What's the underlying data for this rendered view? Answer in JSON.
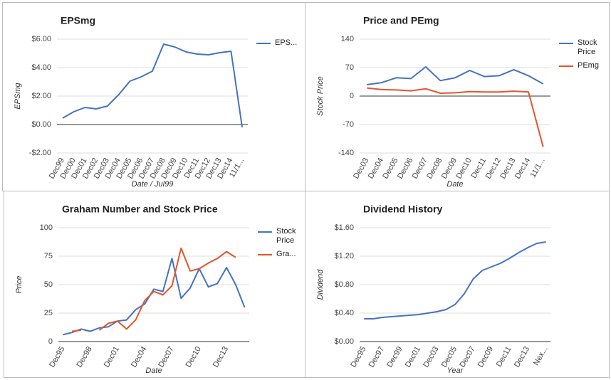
{
  "chart_data": [
    {
      "type": "line",
      "title": "EPSmg",
      "x_label": "Date / Jul99",
      "y_label": "EPSmg",
      "categories": [
        "Dec99",
        "Dec00",
        "Dec01",
        "Dec02",
        "Dec03",
        "Dec04",
        "Dec05",
        "Dec06",
        "Dec07",
        "Dec08",
        "Dec09",
        "Dec10",
        "Dec11",
        "Dec12",
        "Dec13",
        "Dec14",
        "11/1..."
      ],
      "series": [
        {
          "name": "EPS...",
          "color": "#4472c4",
          "values": [
            0.45,
            0.9,
            1.2,
            1.1,
            1.3,
            2.1,
            3.05,
            3.35,
            3.75,
            5.65,
            5.45,
            5.1,
            4.95,
            4.9,
            5.05,
            5.15,
            -0.2
          ]
        }
      ],
      "ylim": [
        -2,
        6
      ],
      "yticks": [
        {
          "value": -2,
          "label": "-$2.00"
        },
        {
          "value": 0,
          "label": "$0.00"
        },
        {
          "value": 2,
          "label": "$2.00"
        },
        {
          "value": 4,
          "label": "$4.00"
        },
        {
          "value": 6,
          "label": "$6.00"
        }
      ],
      "grid": true,
      "legend": "right"
    },
    {
      "type": "line",
      "title": "Price and PEmg",
      "x_label": "Date",
      "y_label": "Stock Price",
      "categories": [
        "Dec03",
        "Dec04",
        "Dec05",
        "Dec06",
        "Dec07",
        "Dec08",
        "Dec09",
        "Dec10",
        "Dec11",
        "Dec12",
        "Dec13",
        "Dec14",
        "11/1..."
      ],
      "series": [
        {
          "name": "Stock Price",
          "color": "#4472c4",
          "values": [
            28,
            33,
            45,
            43,
            72,
            38,
            45,
            63,
            48,
            50,
            65,
            50,
            30
          ]
        },
        {
          "name": "PEmg",
          "color": "#e2552b",
          "values": [
            20,
            16,
            15,
            13,
            18,
            7,
            8,
            11,
            10,
            10,
            12,
            10,
            -125
          ]
        }
      ],
      "ylim": [
        -140,
        140
      ],
      "yticks": [
        -140,
        -70,
        0,
        70,
        140
      ],
      "grid": true,
      "legend": "right"
    },
    {
      "type": "line",
      "title": "Graham Number and Stock Price",
      "x_label": "Date",
      "y_label": "Price",
      "categories": [
        "Dec95",
        null,
        null,
        "Dec98",
        null,
        null,
        "Dec01",
        null,
        null,
        "Dec04",
        null,
        null,
        "Dec07",
        null,
        null,
        "Dec10",
        null,
        null,
        "Dec13",
        null,
        null
      ],
      "series": [
        {
          "name": "Stock Price",
          "color": "#4472c4",
          "values": [
            6,
            8,
            11,
            9,
            12,
            13,
            18,
            19,
            28,
            33,
            46,
            44,
            73,
            38,
            47,
            64,
            48,
            51,
            65,
            50,
            30
          ]
        },
        {
          "name": "Gra...",
          "color": "#e2552b",
          "values": [
            null,
            9,
            10,
            null,
            10,
            16,
            18,
            11,
            19,
            36,
            44,
            41,
            49,
            82,
            62,
            64,
            69,
            73,
            79,
            74,
            null
          ]
        }
      ],
      "ylim": [
        0,
        100
      ],
      "yticks": [
        0,
        25,
        50,
        75,
        100
      ],
      "grid": true,
      "legend": "right"
    },
    {
      "type": "line",
      "title": "Dividend History",
      "x_label": "Year",
      "y_label": "Dividend",
      "categories": [
        "Dec95",
        null,
        "Dec97",
        null,
        "Dec99",
        null,
        "Dec01",
        null,
        "Dec03",
        null,
        "Dec05",
        null,
        "Dec07",
        null,
        "Dec09",
        null,
        "Dec11",
        null,
        "Dec13",
        null,
        "Nex..."
      ],
      "values": [
        0.32,
        0.32,
        0.34,
        0.35,
        0.36,
        0.37,
        0.38,
        0.4,
        0.42,
        0.45,
        0.52,
        0.67,
        0.88,
        1.0,
        1.05,
        1.1,
        1.17,
        1.25,
        1.32,
        1.38,
        1.4
      ],
      "color": "#4472c4",
      "ylim": [
        0,
        1.6
      ],
      "yticks": [
        {
          "value": 0,
          "label": "$0.00"
        },
        {
          "value": 0.4,
          "label": "$0.40"
        },
        {
          "value": 0.8,
          "label": "$0.80"
        },
        {
          "value": 1.2,
          "label": "$1.20"
        },
        {
          "value": 1.6,
          "label": "$1.60"
        }
      ],
      "grid": true
    }
  ]
}
